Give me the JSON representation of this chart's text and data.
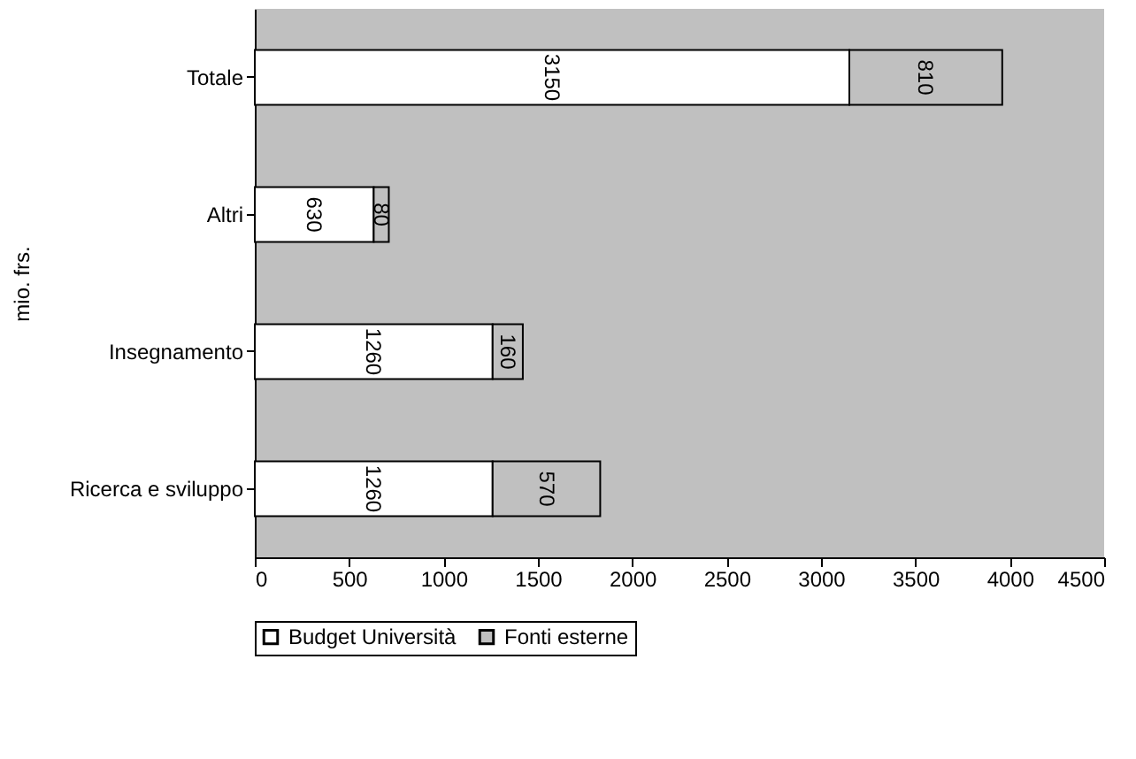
{
  "chart_data": {
    "type": "bar",
    "orientation": "horizontal",
    "stacked": true,
    "ylabel": "mio. frs.",
    "categories": [
      "Totale",
      "Altri",
      "Insegnamento",
      "Ricerca e sviluppo"
    ],
    "series": [
      {
        "name": "Budget Università",
        "color": "#ffffff",
        "values": [
          3150,
          630,
          1260,
          1260
        ]
      },
      {
        "name": "Fonti esterne",
        "color": "#c0c0c0",
        "values": [
          810,
          80,
          160,
          570
        ]
      }
    ],
    "xlim": [
      0,
      4500
    ],
    "xticks": [
      0,
      500,
      1000,
      1500,
      2000,
      2500,
      3000,
      3500,
      4000,
      4500
    ],
    "data_labels": true,
    "grid": false,
    "legend": "bottom"
  }
}
